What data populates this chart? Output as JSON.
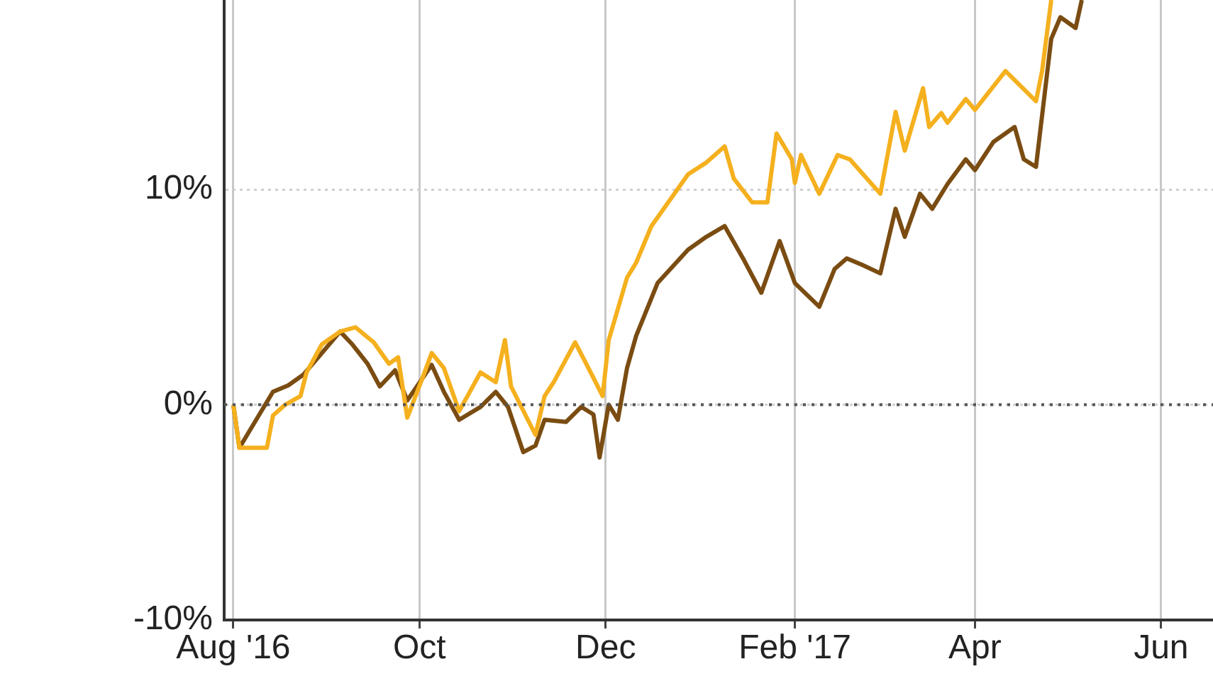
{
  "chart_data": {
    "type": "line",
    "xlim": [
      "2016-07-29",
      "2017-06-18"
    ],
    "xticks": [
      {
        "value": "2016-08-01",
        "label": "Aug '16"
      },
      {
        "value": "2016-10-01",
        "label": "Oct"
      },
      {
        "value": "2016-12-01",
        "label": "Dec"
      },
      {
        "value": "2017-02-01",
        "label": "Feb '17"
      },
      {
        "value": "2017-04-01",
        "label": "Apr"
      },
      {
        "value": "2017-06-01",
        "label": "Jun"
      }
    ],
    "ylim": [
      -10,
      18.8
    ],
    "yticks": [
      {
        "value": -10,
        "label": "-10%"
      },
      {
        "value": 0,
        "label": "0%"
      },
      {
        "value": 10,
        "label": "10%"
      }
    ],
    "grid": true,
    "legend": false,
    "marker": "none",
    "line_style": "solid",
    "ref_lines": [
      {
        "axis": "y",
        "value": 0,
        "color": "#555555",
        "line_style": "dotted"
      }
    ],
    "series": [
      {
        "color": "#f5b01e",
        "x": [
          "2016-08-01",
          "2016-08-03",
          "2016-08-12",
          "2016-08-14",
          "2016-08-18",
          "2016-08-23",
          "2016-08-25",
          "2016-08-30",
          "2016-09-05",
          "2016-09-10",
          "2016-09-16",
          "2016-09-21",
          "2016-09-24",
          "2016-09-27",
          "2016-10-02",
          "2016-10-05",
          "2016-10-09",
          "2016-10-14",
          "2016-10-21",
          "2016-10-26",
          "2016-10-29",
          "2016-10-31",
          "2016-11-08",
          "2016-11-11",
          "2016-11-14",
          "2016-11-21",
          "2016-11-27",
          "2016-11-30",
          "2016-12-02",
          "2016-12-08",
          "2016-12-11",
          "2016-12-16",
          "2016-12-28",
          "2017-01-03",
          "2017-01-09",
          "2017-01-12",
          "2017-01-18",
          "2017-01-23",
          "2017-01-26",
          "2017-01-31",
          "2017-02-01",
          "2017-02-03",
          "2017-02-09",
          "2017-02-15",
          "2017-02-19",
          "2017-03-01",
          "2017-03-06",
          "2017-03-09",
          "2017-03-15",
          "2017-03-17",
          "2017-03-21",
          "2017-03-23",
          "2017-03-29",
          "2017-04-01",
          "2017-04-11",
          "2017-04-21",
          "2017-04-23",
          "2017-04-26"
        ],
        "values": [
          0,
          -2.0,
          -2.0,
          -0.5,
          0,
          0.4,
          1.5,
          2.8,
          3.4,
          3.6,
          2.9,
          1.9,
          2.2,
          -0.6,
          1.25,
          2.4,
          1.7,
          -0.3,
          1.5,
          1.05,
          3.0,
          0.85,
          -1.4,
          0.4,
          1.05,
          2.9,
          1.25,
          0.4,
          3.0,
          5.9,
          6.6,
          8.3,
          10.7,
          11.25,
          12.0,
          10.5,
          9.4,
          9.4,
          12.6,
          11.4,
          10.3,
          11.6,
          9.8,
          11.6,
          11.4,
          9.8,
          13.6,
          11.8,
          14.7,
          12.9,
          13.55,
          13.1,
          14.2,
          13.7,
          15.5,
          14.1,
          15.5,
          18.8
        ]
      },
      {
        "color": "#7a4c12",
        "x": [
          "2016-08-01",
          "2016-08-03",
          "2016-08-14",
          "2016-08-19",
          "2016-08-24",
          "2016-08-30",
          "2016-09-05",
          "2016-09-09",
          "2016-09-14",
          "2016-09-18",
          "2016-09-23",
          "2016-09-27",
          "2016-10-05",
          "2016-10-09",
          "2016-10-14",
          "2016-10-21",
          "2016-10-26",
          "2016-10-30",
          "2016-11-04",
          "2016-11-08",
          "2016-11-11",
          "2016-11-18",
          "2016-11-23",
          "2016-11-27",
          "2016-11-29",
          "2016-12-02",
          "2016-12-05",
          "2016-12-08",
          "2016-12-11",
          "2016-12-18",
          "2016-12-28",
          "2017-01-03",
          "2017-01-09",
          "2017-01-15",
          "2017-01-21",
          "2017-01-27",
          "2017-02-01",
          "2017-02-09",
          "2017-02-14",
          "2017-02-18",
          "2017-02-23",
          "2017-03-01",
          "2017-03-06",
          "2017-03-09",
          "2017-03-14",
          "2017-03-18",
          "2017-03-23",
          "2017-03-29",
          "2017-04-01",
          "2017-04-07",
          "2017-04-14",
          "2017-04-17",
          "2017-04-21",
          "2017-04-26",
          "2017-04-29",
          "2017-05-04",
          "2017-05-06"
        ],
        "values": [
          0,
          -2.0,
          0.6,
          0.9,
          1.4,
          2.4,
          3.4,
          2.8,
          1.9,
          0.85,
          1.6,
          0.2,
          1.85,
          0.6,
          -0.7,
          -0.1,
          0.6,
          -0.1,
          -2.2,
          -1.9,
          -0.7,
          -0.8,
          -0.1,
          -0.45,
          -2.45,
          0,
          -0.7,
          1.7,
          3.2,
          5.65,
          7.2,
          7.8,
          8.3,
          6.8,
          5.2,
          7.6,
          5.65,
          4.55,
          6.3,
          6.8,
          6.5,
          6.1,
          9.1,
          7.8,
          9.8,
          9.1,
          10.25,
          11.4,
          10.9,
          12.2,
          12.9,
          11.4,
          11.05,
          17.0,
          18.0,
          17.5,
          18.8
        ]
      }
    ]
  }
}
